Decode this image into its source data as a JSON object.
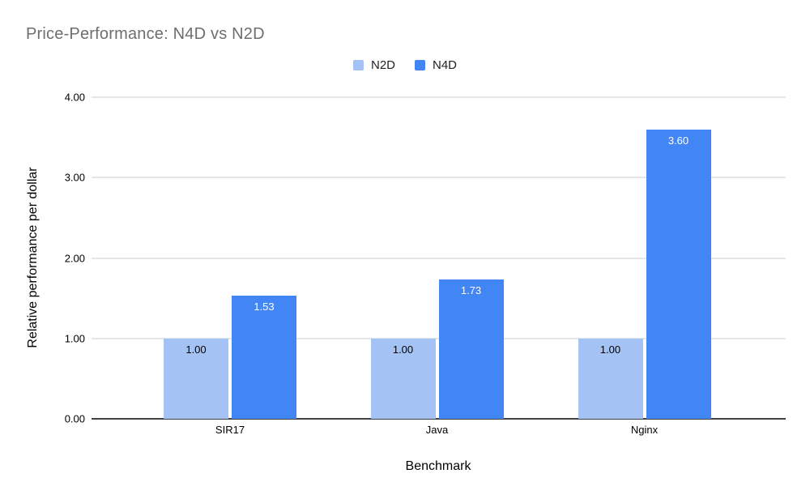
{
  "chart_data": {
    "type": "bar",
    "title": "Price-Performance: N4D vs N2D",
    "xlabel": "Benchmark",
    "ylabel": "Relative performance per dollar",
    "categories": [
      "SIR17",
      "Java",
      "Nginx"
    ],
    "series": [
      {
        "name": "N2D",
        "color": "#a4c2f4",
        "label_color": "#000000",
        "values": [
          1.0,
          1.0,
          1.0
        ],
        "labels": [
          "1.00",
          "1.00",
          "1.00"
        ]
      },
      {
        "name": "N4D",
        "color": "#4285f4",
        "label_color": "#ffffff",
        "values": [
          1.53,
          1.73,
          3.6
        ],
        "labels": [
          "1.53",
          "1.73",
          "3.60"
        ]
      }
    ],
    "ylim": [
      0,
      4
    ],
    "yticks": [
      {
        "value": 0,
        "label": "0.00"
      },
      {
        "value": 1,
        "label": "1.00"
      },
      {
        "value": 2,
        "label": "2.00"
      },
      {
        "value": 3,
        "label": "3.00"
      },
      {
        "value": 4,
        "label": "4.00"
      }
    ],
    "grid": true,
    "legend_position": "top-center"
  },
  "colors": {
    "background": "#ffffff",
    "title_text": "#6e6e6e",
    "axis_text": "#000000",
    "gridline": "#e6e6e6",
    "baseline": "#424242"
  }
}
